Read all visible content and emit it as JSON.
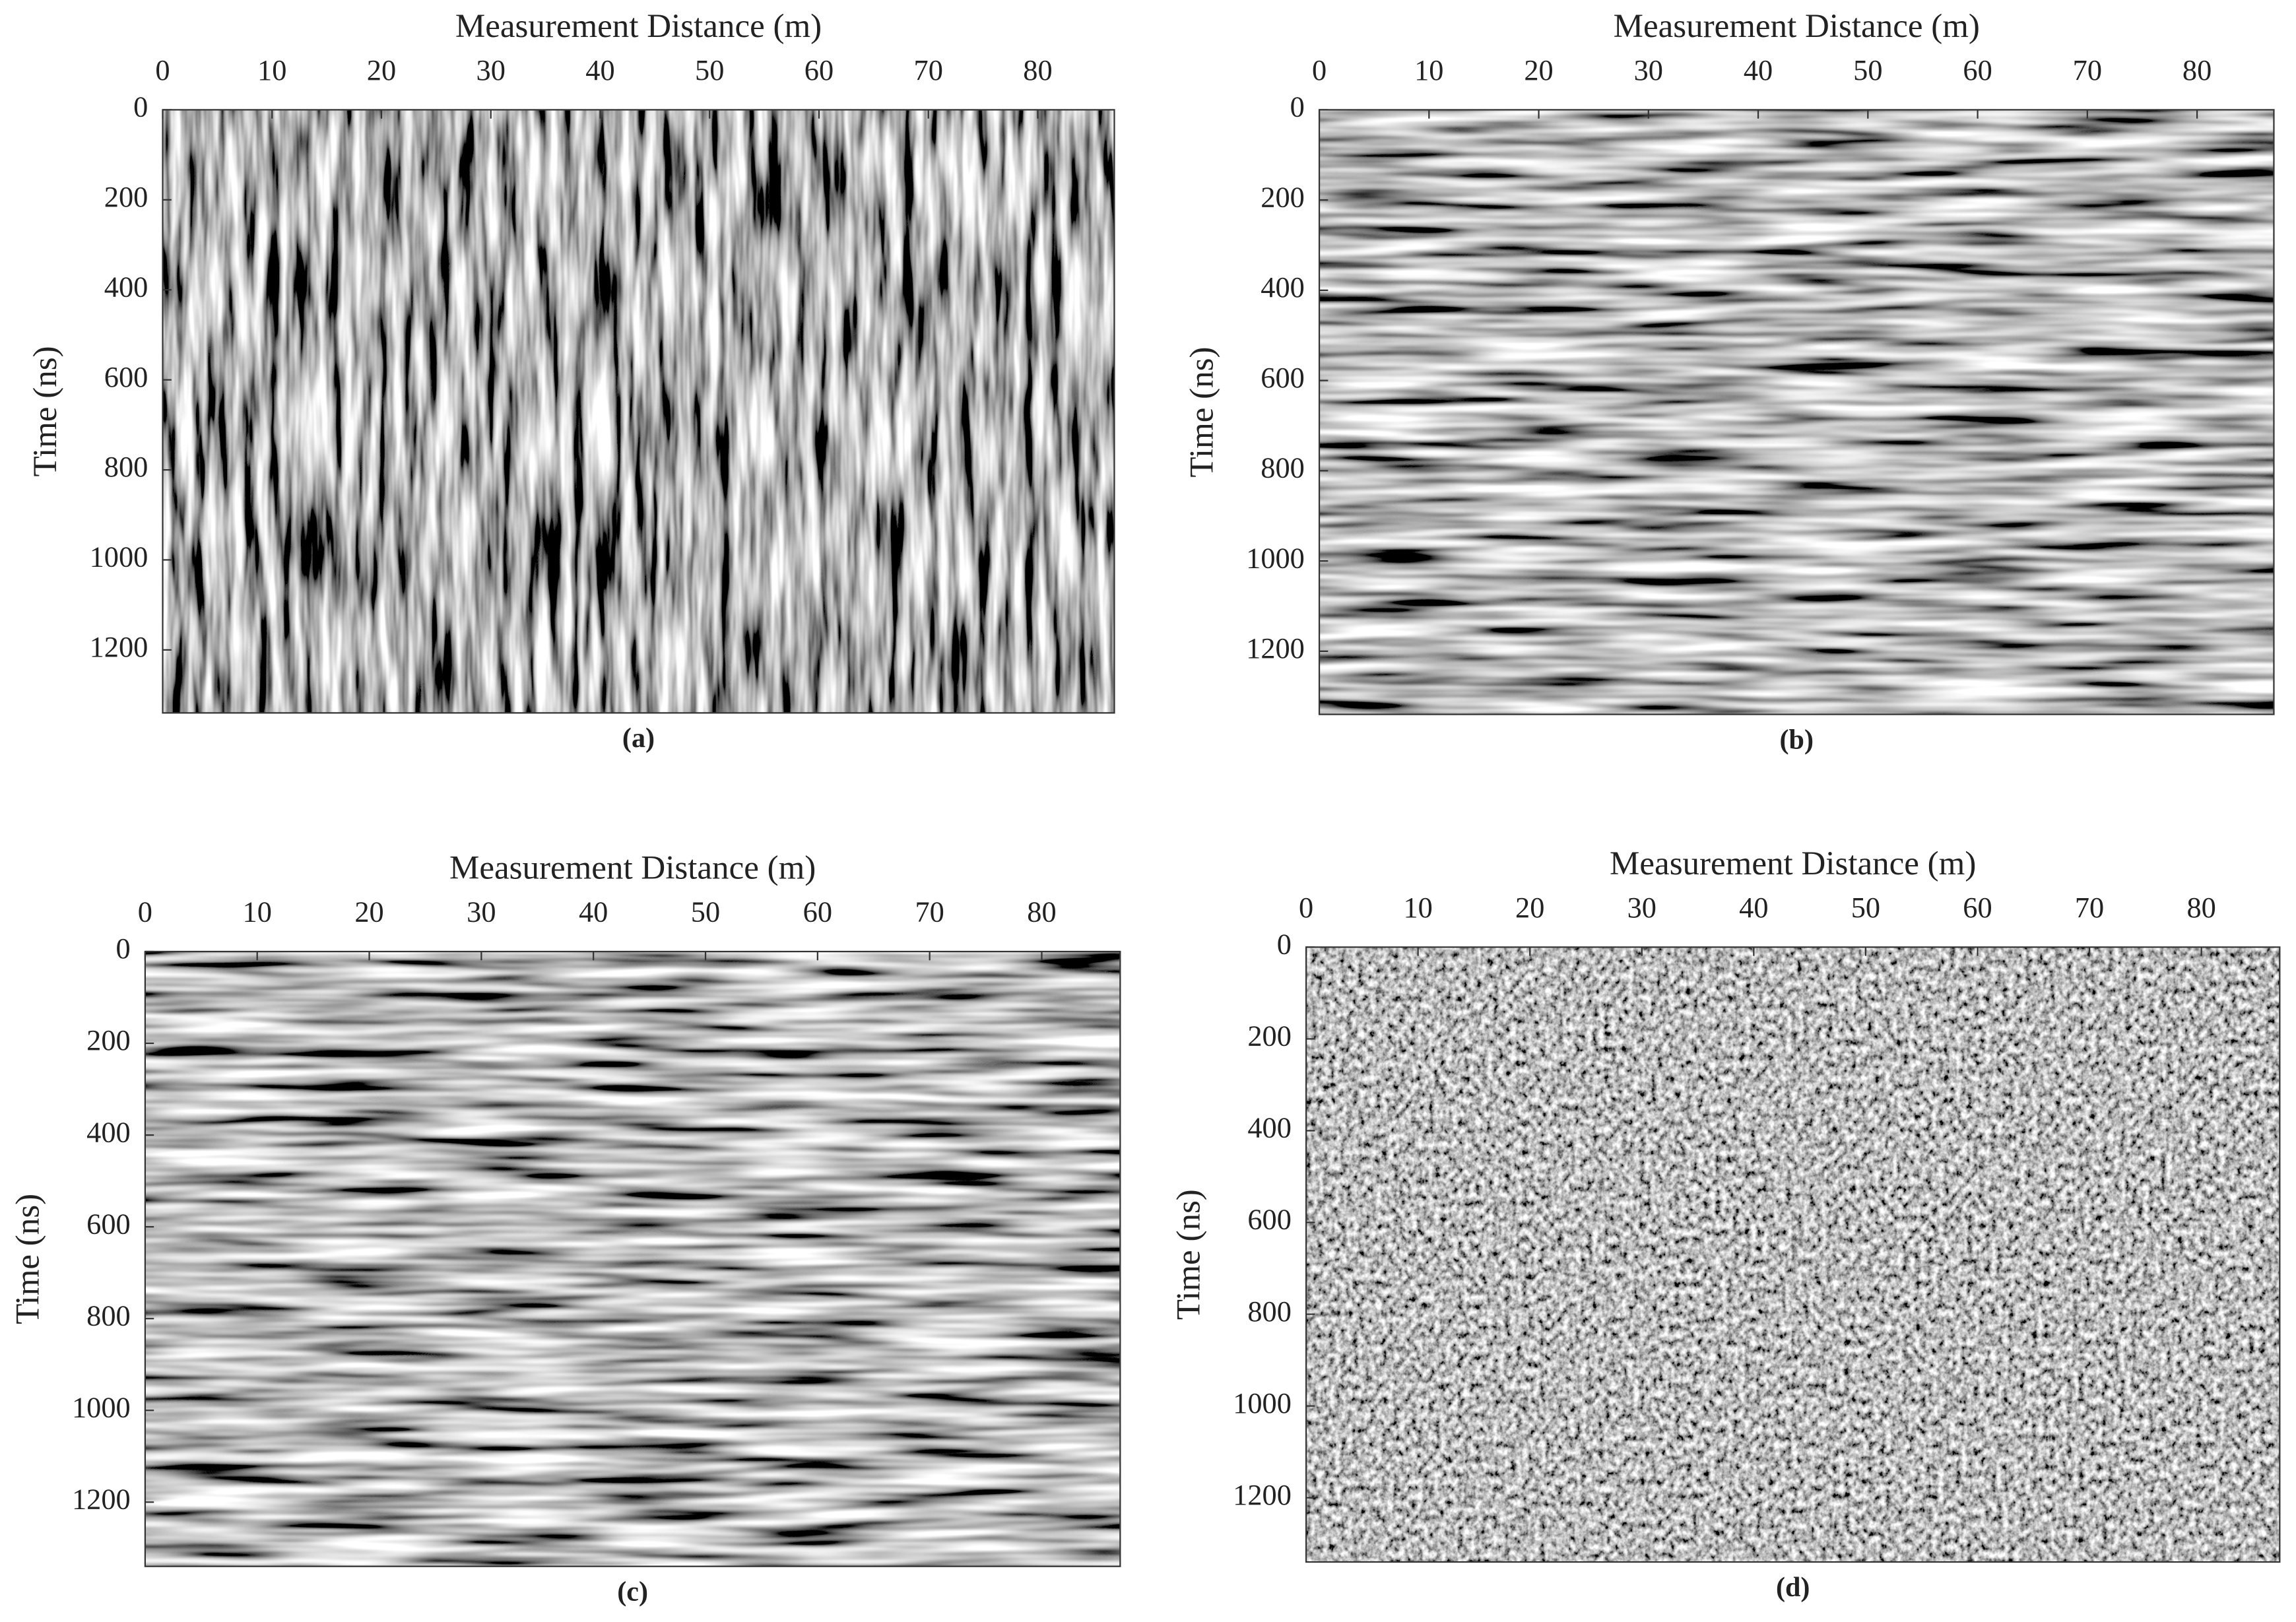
{
  "chart_data": [
    {
      "type": "image",
      "caption": "(a)",
      "xlabel": "Measurement Distance (m)",
      "ylabel": "Time (ns)",
      "xlim": [
        0,
        87
      ],
      "ylim": [
        0,
        1340
      ],
      "y_reversed": true,
      "x_axis_position": "top",
      "xticks": [
        0,
        10,
        20,
        30,
        40,
        50,
        60,
        70,
        80
      ],
      "yticks": [
        0,
        200,
        400,
        600,
        800,
        1000,
        1200
      ],
      "pattern": "vertical"
    },
    {
      "type": "image",
      "caption": "(b)",
      "xlabel": "Measurement Distance (m)",
      "ylabel": "Time (ns)",
      "xlim": [
        0,
        87
      ],
      "ylim": [
        0,
        1340
      ],
      "y_reversed": true,
      "x_axis_position": "top",
      "xticks": [
        0,
        10,
        20,
        30,
        40,
        50,
        60,
        70,
        80
      ],
      "yticks": [
        0,
        200,
        400,
        600,
        800,
        1000,
        1200
      ],
      "pattern": "horizontal"
    },
    {
      "type": "image",
      "caption": "(c)",
      "xlabel": "Measurement Distance (m)",
      "ylabel": "Time (ns)",
      "xlim": [
        0,
        87
      ],
      "ylim": [
        0,
        1340
      ],
      "y_reversed": true,
      "x_axis_position": "top",
      "xticks": [
        0,
        10,
        20,
        30,
        40,
        50,
        60,
        70,
        80
      ],
      "yticks": [
        0,
        200,
        400,
        600,
        800,
        1000,
        1200
      ],
      "pattern": "horizontal"
    },
    {
      "type": "image",
      "caption": "(d)",
      "xlabel": "Measurement Distance (m)",
      "ylabel": "Time (ns)",
      "xlim": [
        0,
        87
      ],
      "ylim": [
        0,
        1340
      ],
      "y_reversed": true,
      "x_axis_position": "top",
      "xticks": [
        0,
        10,
        20,
        30,
        40,
        50,
        60,
        70,
        80
      ],
      "yticks": [
        0,
        200,
        400,
        600,
        800,
        1000,
        1200
      ],
      "pattern": "speckle"
    }
  ]
}
